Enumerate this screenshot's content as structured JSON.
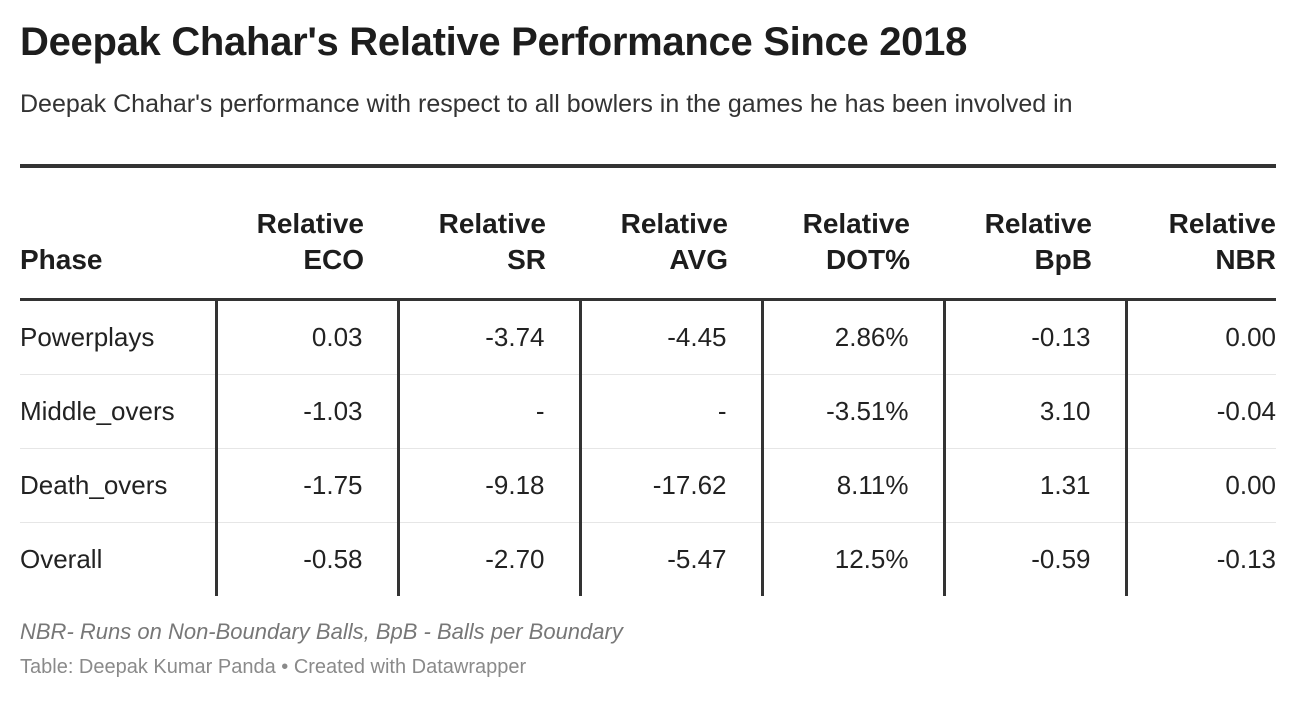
{
  "header": {
    "title": "Deepak Chahar's Relative Performance Since 2018",
    "subtitle": "Deepak Chahar's performance with respect to all bowlers in the games he has been involved in"
  },
  "table": {
    "columns": [
      "Phase",
      "Relative ECO",
      "Relative SR",
      "Relative AVG",
      "Relative DOT%",
      "Relative BpB",
      "Relative NBR"
    ],
    "rows": [
      [
        "Powerplays",
        "0.03",
        "-3.74",
        "-4.45",
        "2.86%",
        "-0.13",
        "0.00"
      ],
      [
        "Middle_overs",
        "-1.03",
        "-",
        "-",
        "-3.51%",
        "3.10",
        "-0.04"
      ],
      [
        "Death_overs",
        "-1.75",
        "-9.18",
        "-17.62",
        "8.11%",
        "1.31",
        "0.00"
      ],
      [
        "Overall",
        "-0.58",
        "-2.70",
        "-5.47",
        "12.5%",
        "-0.59",
        "-0.13"
      ]
    ]
  },
  "notes": "NBR- Runs on Non-Boundary Balls, BpB - Balls per Boundary",
  "footer": "Table: Deepak Kumar Panda • Created with Datawrapper"
}
